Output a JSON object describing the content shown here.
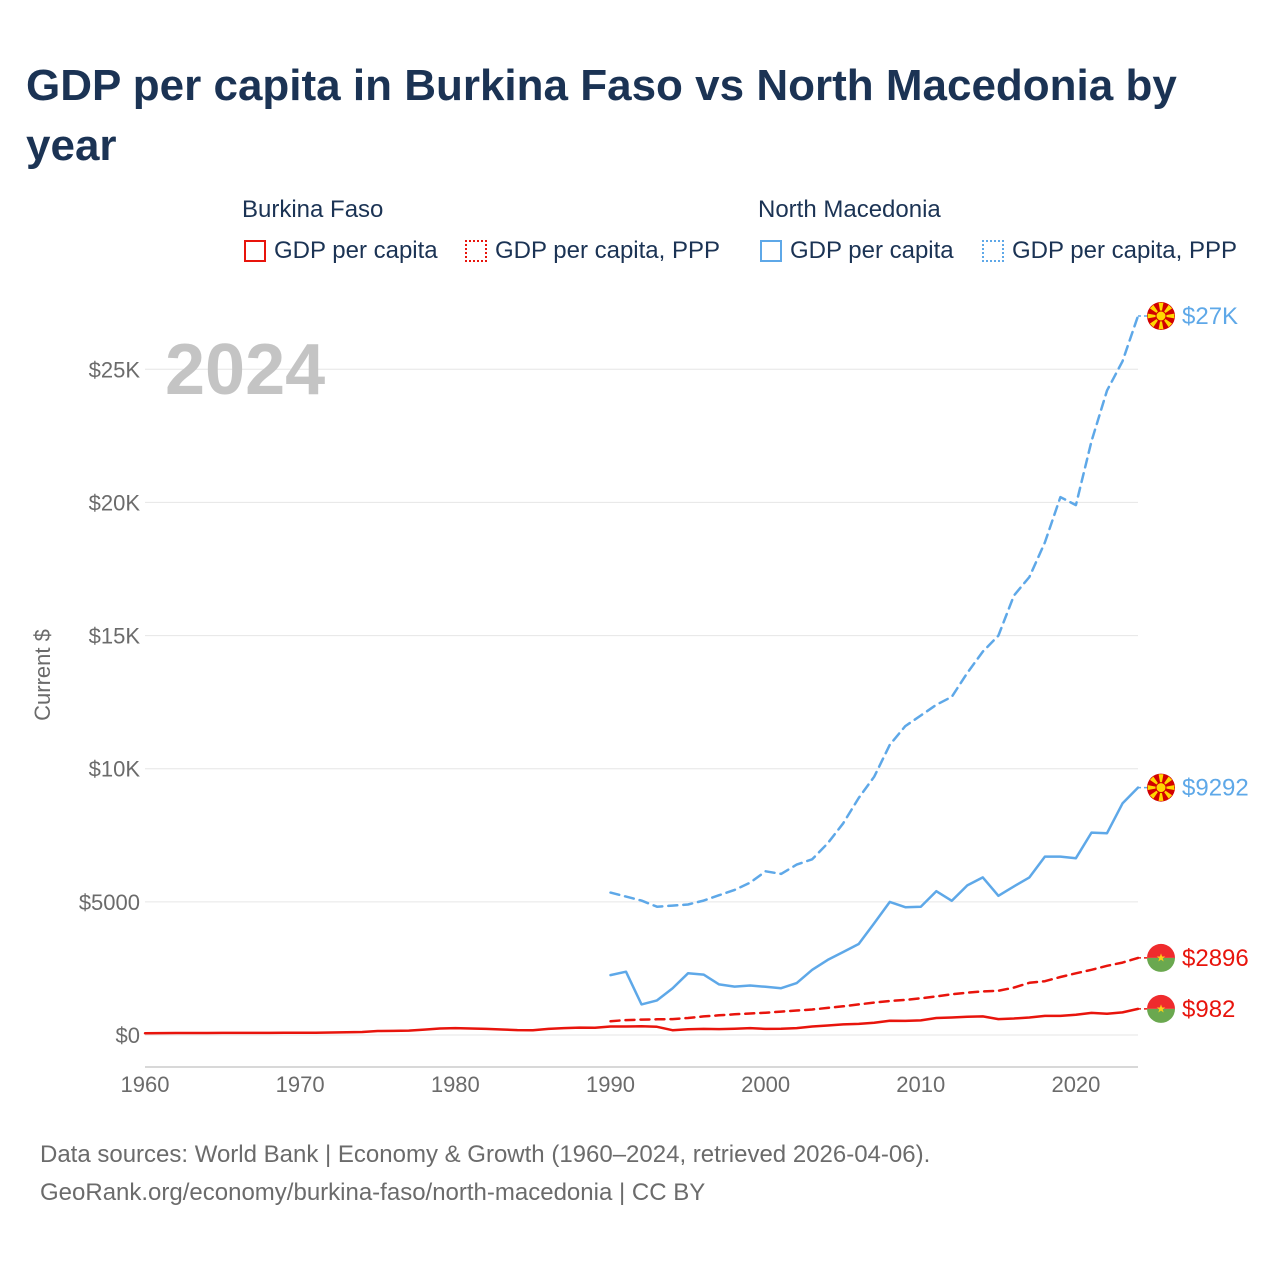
{
  "title": "GDP per capita in Burkina Faso vs North Macedonia by year",
  "legend": {
    "groups": [
      {
        "name": "Burkina Faso",
        "items": [
          "GDP per capita",
          "GDP per capita, PPP"
        ]
      },
      {
        "name": "North Macedonia",
        "items": [
          "GDP per capita",
          "GDP per capita, PPP"
        ]
      }
    ]
  },
  "source": {
    "line1": "Data sources: World Bank | Economy & Growth (1960–2024, retrieved 2026-04-06).",
    "line2": "GeoRank.org/economy/burkina-faso/north-macedonia | CC BY"
  },
  "chart_data": {
    "type": "line",
    "title": "GDP per capita in Burkina Faso vs North Macedonia by year",
    "year_label": "2024",
    "ylabel": "Current $",
    "xlabel": "",
    "xlim": [
      1960,
      2024
    ],
    "ylim": [
      -1200,
      27000
    ],
    "x_ticks": [
      1960,
      1970,
      1980,
      1990,
      2000,
      2010,
      2020
    ],
    "y_ticks": [
      {
        "value": 0,
        "label": "$0"
      },
      {
        "value": 5000,
        "label": "$5000"
      },
      {
        "value": 10000,
        "label": "$10K"
      },
      {
        "value": 15000,
        "label": "$15K"
      },
      {
        "value": 20000,
        "label": "$20K"
      },
      {
        "value": 25000,
        "label": "$25K"
      }
    ],
    "grid": true,
    "series": [
      {
        "name": "Burkina Faso — GDP per capita",
        "color": "#e8140c",
        "style": "solid",
        "end_label": "$982",
        "flag": "burkina-faso",
        "x": [
          1960,
          1961,
          1962,
          1963,
          1964,
          1965,
          1966,
          1967,
          1968,
          1969,
          1970,
          1971,
          1972,
          1973,
          1974,
          1975,
          1976,
          1977,
          1978,
          1979,
          1980,
          1981,
          1982,
          1983,
          1984,
          1985,
          1986,
          1987,
          1988,
          1989,
          1990,
          1991,
          1992,
          1993,
          1994,
          1995,
          1996,
          1997,
          1998,
          1999,
          2000,
          2001,
          2002,
          2003,
          2004,
          2005,
          2006,
          2007,
          2008,
          2009,
          2010,
          2011,
          2012,
          2013,
          2014,
          2015,
          2016,
          2017,
          2018,
          2019,
          2020,
          2021,
          2022,
          2023,
          2024
        ],
        "y": [
          70,
          72,
          75,
          77,
          78,
          80,
          80,
          82,
          82,
          83,
          84,
          88,
          95,
          105,
          115,
          150,
          155,
          165,
          205,
          245,
          260,
          245,
          230,
          210,
          185,
          180,
          230,
          260,
          280,
          275,
          320,
          320,
          330,
          310,
          180,
          220,
          230,
          225,
          240,
          260,
          230,
          235,
          260,
          320,
          360,
          400,
          420,
          460,
          540,
          530,
          550,
          640,
          660,
          690,
          700,
          600,
          620,
          660,
          720,
          720,
          760,
          830,
          800,
          850,
          982
        ]
      },
      {
        "name": "Burkina Faso — GDP per capita, PPP",
        "color": "#e8140c",
        "style": "dashed",
        "end_label": "$2896",
        "flag": "burkina-faso",
        "x": [
          1990,
          1991,
          1992,
          1993,
          1994,
          1995,
          1996,
          1997,
          1998,
          1999,
          2000,
          2001,
          2002,
          2003,
          2004,
          2005,
          2006,
          2007,
          2008,
          2009,
          2010,
          2011,
          2012,
          2013,
          2014,
          2015,
          2016,
          2017,
          2018,
          2019,
          2020,
          2021,
          2022,
          2023,
          2024
        ],
        "y": [
          520,
          560,
          580,
          590,
          600,
          640,
          700,
          740,
          780,
          810,
          840,
          880,
          920,
          960,
          1020,
          1080,
          1150,
          1220,
          1280,
          1320,
          1380,
          1450,
          1530,
          1590,
          1640,
          1660,
          1780,
          1960,
          2020,
          2180,
          2320,
          2450,
          2600,
          2720,
          2896
        ]
      },
      {
        "name": "North Macedonia — GDP per capita",
        "color": "#5ea8e8",
        "style": "solid",
        "end_label": "$9292",
        "flag": "north-macedonia",
        "x": [
          1990,
          1991,
          1992,
          1993,
          1994,
          1995,
          1996,
          1997,
          1998,
          1999,
          2000,
          2001,
          2002,
          2003,
          2004,
          2005,
          2006,
          2007,
          2008,
          2009,
          2010,
          2011,
          2012,
          2013,
          2014,
          2015,
          2016,
          2017,
          2018,
          2019,
          2020,
          2021,
          2022,
          2023,
          2024
        ],
        "y": [
          2250,
          2380,
          1150,
          1300,
          1750,
          2320,
          2270,
          1900,
          1820,
          1860,
          1810,
          1760,
          1950,
          2450,
          2820,
          3120,
          3420,
          4200,
          5000,
          4800,
          4820,
          5400,
          5040,
          5620,
          5920,
          5230,
          5580,
          5920,
          6700,
          6700,
          6640,
          7600,
          7580,
          8700,
          9292
        ]
      },
      {
        "name": "North Macedonia — GDP per capita, PPP",
        "color": "#5ea8e8",
        "style": "dashed",
        "end_label": "$27K",
        "flag": "north-macedonia",
        "x": [
          1990,
          1991,
          1992,
          1993,
          1994,
          1995,
          1996,
          1997,
          1998,
          1999,
          2000,
          2001,
          2002,
          2003,
          2004,
          2005,
          2006,
          2007,
          2008,
          2009,
          2010,
          2011,
          2012,
          2013,
          2014,
          2015,
          2016,
          2017,
          2018,
          2019,
          2020,
          2021,
          2022,
          2023,
          2024
        ],
        "y": [
          5350,
          5200,
          5050,
          4820,
          4860,
          4900,
          5050,
          5250,
          5450,
          5720,
          6150,
          6050,
          6400,
          6600,
          7200,
          7950,
          8900,
          9700,
          10900,
          11600,
          12000,
          12400,
          12700,
          13600,
          14400,
          15000,
          16500,
          17200,
          18500,
          20200,
          19900,
          22300,
          24200,
          25300,
          27000
        ]
      }
    ]
  }
}
